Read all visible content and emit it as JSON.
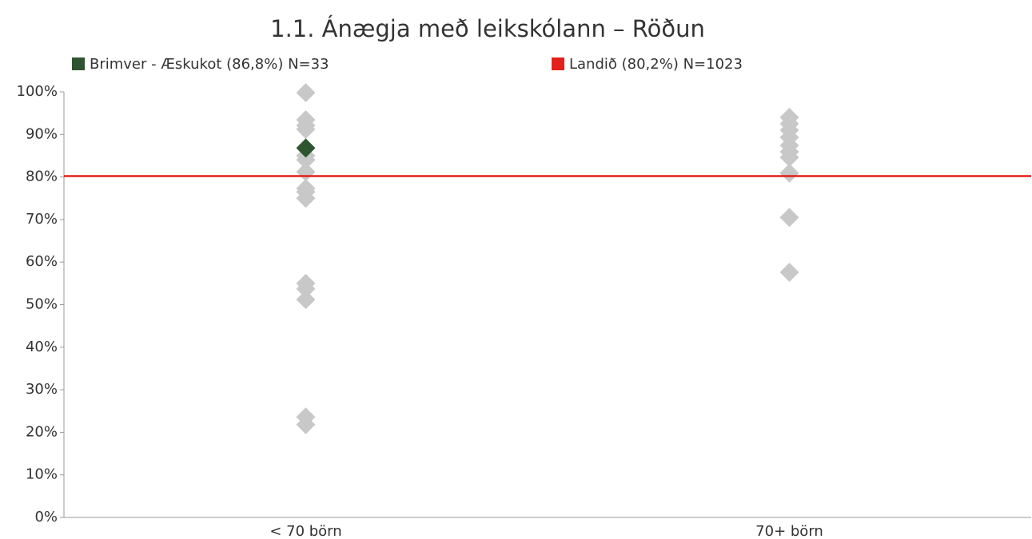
{
  "chart_data": {
    "type": "scatter",
    "title": "1.1. Ánægja með leikskólann – Röðun",
    "categories": [
      "< 70 börn",
      "70+ börn"
    ],
    "series": [
      {
        "color": "#c8c8c8",
        "values": [
          [
            99.8,
            93.4,
            92.1,
            91.2,
            85,
            84,
            81.2,
            77.3,
            76.5,
            75,
            55,
            53.7,
            51.2,
            23.6,
            21.8
          ],
          [
            94,
            92.5,
            91,
            89.3,
            87.4,
            85.9,
            84.6,
            80.9,
            70.5,
            57.6
          ]
        ]
      },
      {
        "name": "Brimver - Æskukot (86,8%) N=33",
        "color": "#2e5530",
        "values": [
          [
            86.8
          ],
          []
        ]
      }
    ],
    "reference_lines": [
      {
        "name": "Landið (80,2%) N=1023",
        "value": 80.2,
        "color": "#e3201b"
      }
    ],
    "ylim": [
      0,
      100
    ],
    "yticks": [
      {
        "value": 0,
        "label": "0%"
      },
      {
        "value": 10,
        "label": "10%"
      },
      {
        "value": 20,
        "label": "20%"
      },
      {
        "value": 30,
        "label": "30%"
      },
      {
        "value": 40,
        "label": "40%"
      },
      {
        "value": 50,
        "label": "50%"
      },
      {
        "value": 60,
        "label": "60%"
      },
      {
        "value": 70,
        "label": "70%"
      },
      {
        "value": 80,
        "label": "80%"
      },
      {
        "value": 90,
        "label": "90%"
      },
      {
        "value": 100,
        "label": "100%"
      }
    ]
  }
}
